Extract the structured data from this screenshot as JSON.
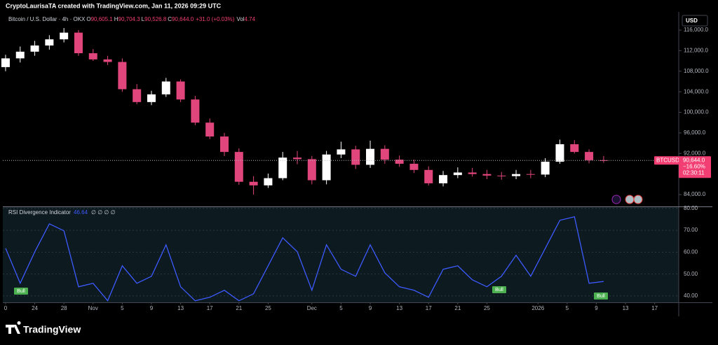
{
  "header": {
    "credit": "CryptoLaurisaTA created with TradingView.com, Jan 11, 2026 09:29 UTC"
  },
  "currency": "USD",
  "footer": {
    "brand": "TradingView"
  },
  "chart_data": [
    {
      "type": "candlestick",
      "title": "Bitcoin / U.S. Dollar · 4h · OKX",
      "legend_labels": {
        "open": "O",
        "high": "H",
        "low": "L",
        "close": "C",
        "volume": "Vol"
      },
      "legend_values": {
        "open": "90,605.1",
        "high": "90,704.3",
        "low": "90,526.8",
        "close": "90,644.0",
        "change": "+31.0 (+0.03%)",
        "volume": "4.74"
      },
      "symbol": "BTCUSD",
      "last_price": {
        "value": 90644,
        "label": "90,644.0"
      },
      "change_label": "−16.60%",
      "countdown": "02:30:11",
      "up_color": "#ffffff",
      "down_color": "#e0457b",
      "categories": [
        null,
        null,
        null,
        null,
        null,
        null,
        null,
        null,
        null,
        null,
        null,
        null,
        null,
        null,
        null,
        null,
        null,
        null,
        null,
        null,
        null,
        null,
        null,
        null,
        null,
        null,
        null,
        null,
        null,
        null,
        null,
        null,
        null,
        null,
        null,
        null,
        null,
        null,
        null,
        null,
        null,
        null
      ],
      "open": [
        108800,
        110500,
        111800,
        113000,
        114200,
        115500,
        111500,
        110300,
        109800,
        104500,
        102000,
        103500,
        106000,
        102500,
        98000,
        95300,
        92300,
        86500,
        85800,
        87200,
        91200,
        90900,
        86800,
        91800,
        92800,
        89800,
        92900,
        90800,
        90000,
        88800,
        86200,
        87800,
        88300,
        88000,
        87700,
        87600,
        88000,
        87900,
        90400,
        93800,
        92300,
        90700
      ],
      "high": [
        111200,
        112800,
        113900,
        115000,
        116400,
        116000,
        112300,
        111000,
        110500,
        105500,
        104200,
        106700,
        106400,
        103200,
        98800,
        96000,
        93000,
        87600,
        88100,
        92300,
        92500,
        91500,
        92500,
        94300,
        93500,
        94500,
        93600,
        91600,
        90800,
        89500,
        88600,
        89300,
        89200,
        88800,
        88400,
        88800,
        88800,
        91100,
        94700,
        94600,
        92800,
        91500
      ],
      "low": [
        108000,
        109700,
        111000,
        112200,
        113600,
        111000,
        110000,
        109200,
        104000,
        101600,
        101400,
        103000,
        102000,
        97500,
        94800,
        91500,
        85900,
        84000,
        85300,
        86800,
        89900,
        86000,
        86000,
        91100,
        89000,
        89200,
        90000,
        89400,
        88200,
        85800,
        85600,
        87200,
        87500,
        87000,
        86900,
        87000,
        87200,
        87400,
        90000,
        92000,
        90100,
        90200
      ],
      "close": [
        110500,
        111800,
        113000,
        114200,
        115500,
        111500,
        110300,
        109800,
        104500,
        102000,
        103500,
        106000,
        102500,
        98000,
        95300,
        92300,
        86500,
        85800,
        87200,
        91200,
        90900,
        86800,
        91800,
        92800,
        89800,
        92900,
        90800,
        90000,
        88800,
        86200,
        87800,
        88300,
        88000,
        87700,
        87600,
        88000,
        87900,
        90400,
        93800,
        92300,
        90700,
        90644
      ],
      "xlim": [
        -0.19,
        46.15
      ],
      "ylim": [
        81700,
        119400
      ],
      "yticks": [
        {
          "value": 84000,
          "label": "84,000.0"
        },
        {
          "value": 92000,
          "label": "92,000.0"
        },
        {
          "value": 96000,
          "label": "96,000.0"
        },
        {
          "value": 100000,
          "label": "100,000.0"
        },
        {
          "value": 104000,
          "label": "104,000.0"
        },
        {
          "value": 108000,
          "label": "108,000.0"
        },
        {
          "value": 112000,
          "label": "112,000.0"
        },
        {
          "value": 116000,
          "label": "116,000.0"
        }
      ],
      "grid": false
    },
    {
      "type": "line",
      "title": "RSI Divergence Indicator",
      "placeholders": "∅ ∅ ∅ ∅",
      "color": "#3d5afe",
      "signals": [
        "Bull",
        "Bull",
        "Bull"
      ],
      "values": [
        61.8,
        45.8,
        60.2,
        73,
        69.8,
        44.2,
        45.8,
        37.8,
        53.8,
        45.8,
        49,
        63.4,
        44.2,
        37.8,
        39.4,
        42.6,
        37.8,
        41,
        53.8,
        66.6,
        60.2,
        42.6,
        63.4,
        52.2,
        49,
        63.4,
        50.6,
        44.2,
        42.6,
        39.4,
        52.2,
        53.8,
        47.4,
        44.2,
        49,
        58.6,
        49,
        61.8,
        74.6,
        76.2,
        45.8,
        46.64
      ],
      "xlim": [
        -0.19,
        46.15
      ],
      "ylim": [
        37.1,
        80.6
      ],
      "yticks": [
        {
          "value": 40,
          "label": "40.00"
        },
        {
          "value": 50,
          "label": "50.00"
        },
        {
          "value": 60,
          "label": "60.00"
        },
        {
          "value": 70,
          "label": "70.00"
        },
        {
          "value": 80,
          "label": "80.00"
        }
      ],
      "xticks": [
        {
          "value": 0,
          "label": "0"
        },
        {
          "value": 2,
          "label": "24"
        },
        {
          "value": 4,
          "label": "28"
        },
        {
          "value": 6,
          "label": "Nov"
        },
        {
          "value": 8,
          "label": "5"
        },
        {
          "value": 10,
          "label": "9"
        },
        {
          "value": 12,
          "label": "13"
        },
        {
          "value": 14,
          "label": "17"
        },
        {
          "value": 16,
          "label": "21"
        },
        {
          "value": 18,
          "label": "25"
        },
        {
          "value": 21,
          "label": "Dec"
        },
        {
          "value": 23,
          "label": "5"
        },
        {
          "value": 25,
          "label": "9"
        },
        {
          "value": 27,
          "label": "13"
        },
        {
          "value": 29,
          "label": "17"
        },
        {
          "value": 31,
          "label": "21"
        },
        {
          "value": 33,
          "label": "25"
        },
        {
          "value": 36.5,
          "label": "2026"
        },
        {
          "value": 38.5,
          "label": "5"
        },
        {
          "value": 40.5,
          "label": "9"
        },
        {
          "value": 42.5,
          "label": "13"
        },
        {
          "value": 44.5,
          "label": "17"
        }
      ]
    }
  ]
}
